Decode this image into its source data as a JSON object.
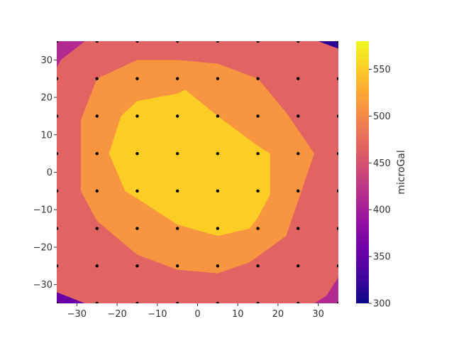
{
  "chart_data": {
    "type": "contour",
    "title": "",
    "xlabel": "",
    "ylabel": "",
    "xlim": [
      -35,
      35
    ],
    "ylim": [
      -35,
      35
    ],
    "x_ticks": [
      -30,
      -20,
      -10,
      0,
      10,
      20,
      30
    ],
    "y_ticks": [
      -30,
      -20,
      -10,
      0,
      10,
      20,
      30
    ],
    "grid": false,
    "colormap": "plasma",
    "colorbar": {
      "label": "microGal",
      "range": [
        300,
        580
      ],
      "ticks": [
        300,
        350,
        400,
        450,
        500,
        550
      ]
    },
    "levels": [
      {
        "range": [
          300,
          350
        ],
        "color": "#2a0593"
      },
      {
        "range": [
          350,
          400
        ],
        "color": "#6a00a8"
      },
      {
        "range": [
          400,
          450
        ],
        "color": "#b12a90"
      },
      {
        "range": [
          450,
          500
        ],
        "color": "#e16462"
      },
      {
        "range": [
          500,
          550
        ],
        "color": "#f89540"
      },
      {
        "range": [
          550,
          600
        ],
        "color": "#fcce25"
      }
    ],
    "contour_bands": [
      {
        "level": 450,
        "color": "#e16462",
        "points": [
          [
            -35,
            28
          ],
          [
            -34,
            30
          ],
          [
            -28,
            35
          ],
          [
            30,
            35
          ],
          [
            35,
            33
          ],
          [
            35,
            -28
          ],
          [
            32,
            -33
          ],
          [
            29,
            -35
          ],
          [
            -28,
            -35
          ],
          [
            -35,
            -32
          ]
        ]
      },
      {
        "level": 500,
        "color": "#f89540",
        "points": [
          [
            -29,
            4
          ],
          [
            -29,
            14
          ],
          [
            -25,
            25
          ],
          [
            -15,
            30
          ],
          [
            -5,
            30
          ],
          [
            5,
            29
          ],
          [
            15,
            25
          ],
          [
            22,
            16
          ],
          [
            29,
            5
          ],
          [
            22,
            -17
          ],
          [
            13,
            -24
          ],
          [
            5,
            -27
          ],
          [
            -5,
            -26
          ],
          [
            -15,
            -22
          ],
          [
            -25,
            -13
          ],
          [
            -29,
            -5
          ]
        ]
      },
      {
        "level": 550,
        "color": "#fcce25",
        "points": [
          [
            -22,
            5
          ],
          [
            -19,
            15
          ],
          [
            -15,
            19
          ],
          [
            -5,
            21
          ],
          [
            -3,
            22
          ],
          [
            5,
            15
          ],
          [
            15,
            7
          ],
          [
            18,
            5
          ],
          [
            18,
            -6
          ],
          [
            15,
            -12
          ],
          [
            13,
            -15
          ],
          [
            5,
            -17
          ],
          [
            -5,
            -14
          ],
          [
            -15,
            -7
          ],
          [
            -18,
            -5
          ]
        ]
      }
    ],
    "corner_bands": [
      {
        "level": 400,
        "color": "#b12a90",
        "corner": "top-right",
        "points": [
          [
            10,
            35
          ],
          [
            35,
            35
          ],
          [
            35,
            10
          ],
          [
            30,
            18
          ],
          [
            25,
            25
          ],
          [
            20,
            30
          ]
        ]
      },
      {
        "level": 350,
        "color": "#6a00a8",
        "corner": "top-right",
        "points": [
          [
            20,
            35
          ],
          [
            35,
            35
          ],
          [
            35,
            25
          ],
          [
            30,
            30
          ]
        ]
      },
      {
        "level": 300,
        "color": "#2a0593",
        "corner": "top-right",
        "points": [
          [
            29,
            35
          ],
          [
            35,
            35
          ],
          [
            35,
            31
          ]
        ]
      },
      {
        "level": 400,
        "color": "#b12a90",
        "corner": "top-left",
        "points": [
          [
            -35,
            35
          ],
          [
            -22,
            35
          ],
          [
            -27,
            30
          ],
          [
            -35,
            25
          ]
        ]
      },
      {
        "level": 400,
        "color": "#b12a90",
        "corner": "bottom-left",
        "points": [
          [
            -35,
            -15
          ],
          [
            -33,
            -22
          ],
          [
            -25,
            -30
          ],
          [
            -15,
            -35
          ],
          [
            -35,
            -35
          ]
        ]
      },
      {
        "level": 350,
        "color": "#6a00a8",
        "corner": "bottom-left",
        "points": [
          [
            -35,
            -27
          ],
          [
            -30,
            -30
          ],
          [
            -25,
            -33
          ],
          [
            -20,
            -35
          ],
          [
            -35,
            -35
          ]
        ]
      },
      {
        "level": 400,
        "color": "#b12a90",
        "corner": "bottom-right",
        "points": [
          [
            35,
            -5
          ],
          [
            35,
            -35
          ],
          [
            15,
            -35
          ],
          [
            22,
            -30
          ],
          [
            28,
            -22
          ]
        ]
      }
    ],
    "background_level": {
      "level": 450,
      "color": "#e16462"
    },
    "stations_x": [
      -35,
      -25,
      -15,
      -5,
      5,
      15,
      25,
      35
    ],
    "stations_y": [
      35,
      25,
      15,
      5,
      -5,
      -15,
      -25,
      -35
    ]
  }
}
